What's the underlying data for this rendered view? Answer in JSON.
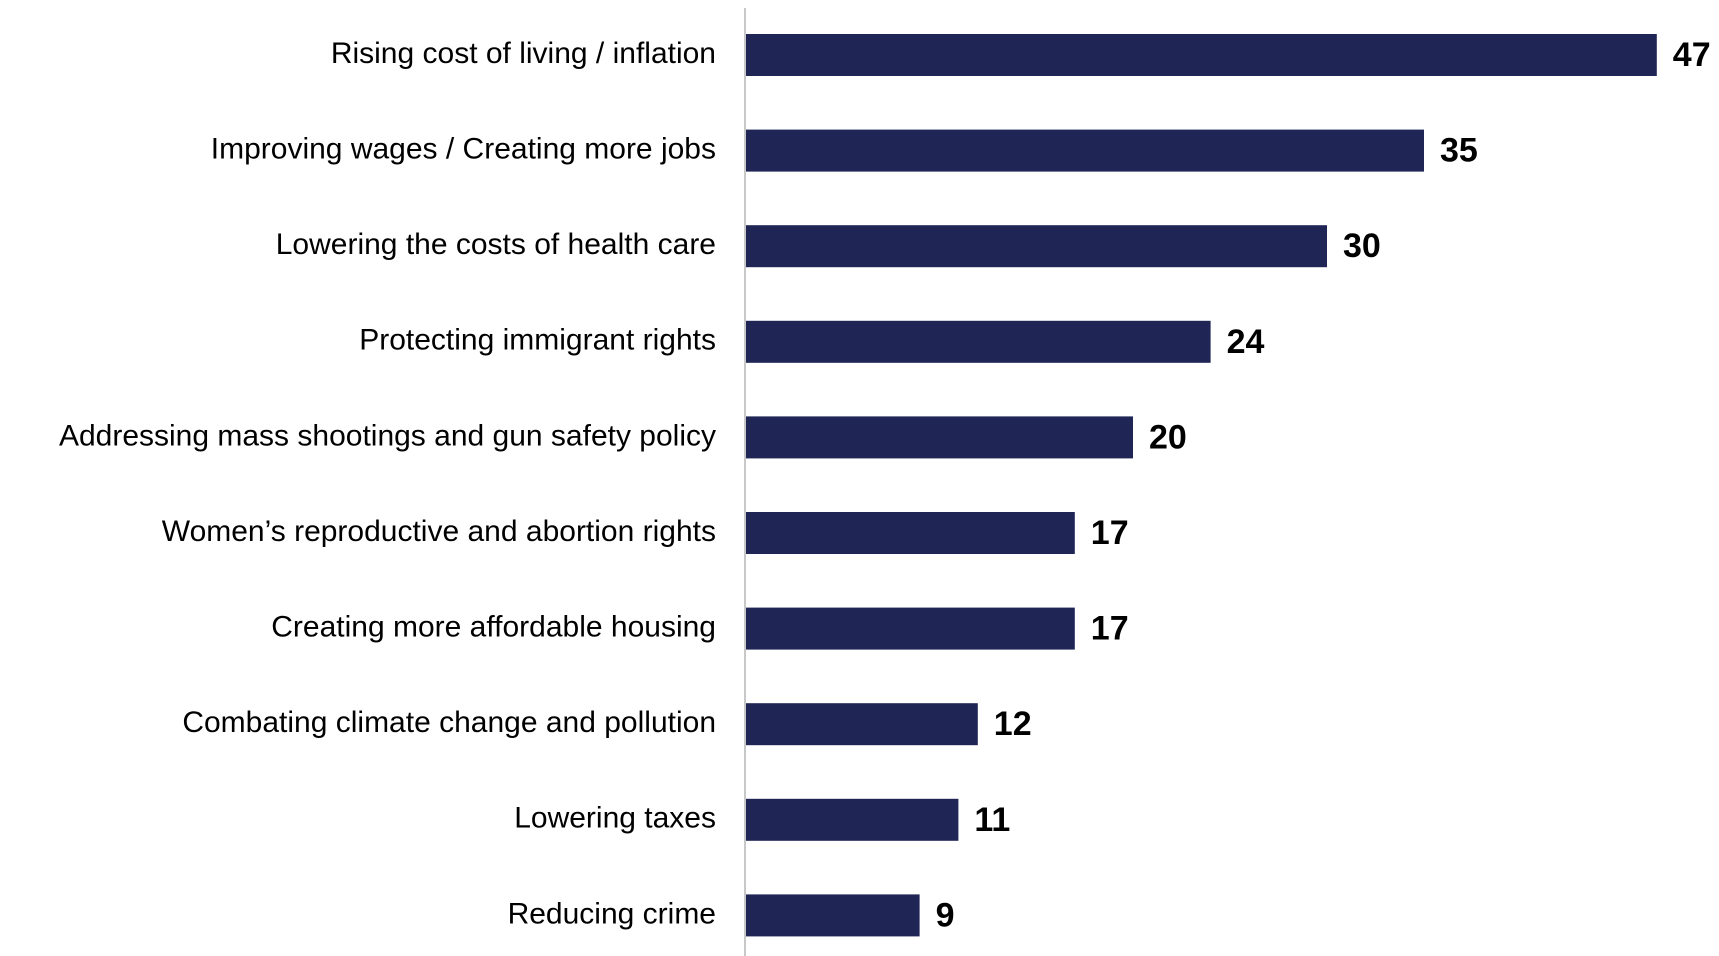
{
  "chart_data": {
    "type": "bar",
    "orientation": "horizontal",
    "categories": [
      "Rising cost of living / inflation",
      "Improving wages / Creating more jobs",
      "Lowering the costs of health care",
      "Protecting immigrant rights",
      "Addressing mass shootings and gun safety policy",
      "Women’s reproductive and abortion rights",
      "Creating more affordable housing",
      "Combating climate change and pollution",
      "Lowering taxes",
      "Reducing crime"
    ],
    "values": [
      47,
      35,
      30,
      24,
      20,
      17,
      17,
      12,
      11,
      9
    ],
    "value_labels": [
      "47",
      "35",
      "30",
      "24",
      "20",
      "17",
      "17",
      "12",
      "11",
      "9"
    ],
    "xlim": [
      0,
      50
    ],
    "grid": false,
    "legend": "none",
    "colors": {
      "bar": "#1f2555",
      "axis": "#c8c8c8",
      "text": "#000000"
    }
  }
}
